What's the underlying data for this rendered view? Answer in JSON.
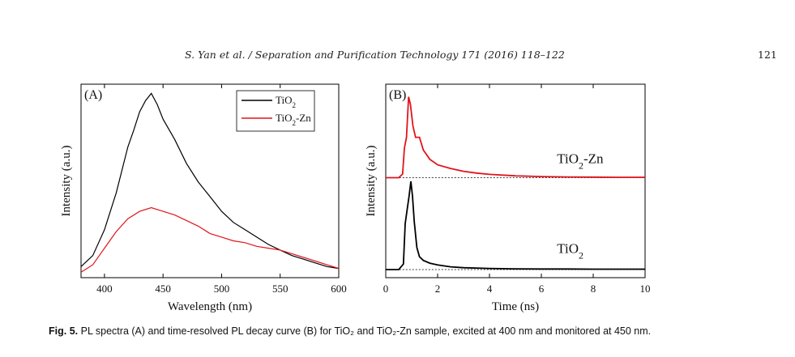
{
  "header": {
    "journal": "S. Yan et al. / Separation and Purification Technology 171 (2016) 118–122",
    "page_number": "121"
  },
  "caption": {
    "label": "Fig. 5.",
    "text": "PL spectra (A) and time-resolved PL decay curve (B) for TiO₂ and TiO₂-Zn sample, excited at 400 nm and monitored at 450 nm."
  },
  "colors": {
    "tio2": "#000000",
    "tio2_zn": "#e0141b"
  },
  "chart_data": [
    {
      "type": "line",
      "panel_label": "(A)",
      "xlabel": "Wavelength (nm)",
      "ylabel": "Intensity (a.u.)",
      "xlim": [
        380,
        600
      ],
      "ylim": [
        0,
        1.05
      ],
      "x_ticks": [
        400,
        450,
        500,
        550,
        600
      ],
      "legend_position": "top-right",
      "legend": [
        {
          "name": "TiO",
          "sub": "2",
          "suffix": "",
          "color": "#000000"
        },
        {
          "name": "TiO",
          "sub": "2",
          "suffix": "-Zn",
          "color": "#e0141b"
        }
      ],
      "series": [
        {
          "name": "TiO2",
          "color": "#000000",
          "x": [
            380,
            390,
            400,
            410,
            420,
            425,
            430,
            435,
            440,
            445,
            450,
            460,
            470,
            480,
            490,
            500,
            510,
            520,
            530,
            540,
            550,
            560,
            570,
            580,
            590,
            600
          ],
          "values": [
            0.06,
            0.12,
            0.26,
            0.46,
            0.71,
            0.8,
            0.9,
            0.96,
            1.0,
            0.94,
            0.86,
            0.75,
            0.62,
            0.52,
            0.44,
            0.36,
            0.3,
            0.26,
            0.22,
            0.18,
            0.15,
            0.12,
            0.1,
            0.08,
            0.06,
            0.05
          ]
        },
        {
          "name": "TiO2-Zn",
          "color": "#e0141b",
          "x": [
            380,
            390,
            400,
            410,
            420,
            430,
            440,
            450,
            460,
            470,
            480,
            490,
            500,
            510,
            520,
            530,
            540,
            550,
            560,
            570,
            580,
            590,
            600
          ],
          "values": [
            0.03,
            0.07,
            0.16,
            0.25,
            0.32,
            0.36,
            0.38,
            0.36,
            0.34,
            0.31,
            0.28,
            0.24,
            0.22,
            0.2,
            0.19,
            0.17,
            0.16,
            0.15,
            0.13,
            0.11,
            0.09,
            0.07,
            0.05
          ]
        }
      ]
    },
    {
      "type": "line",
      "panel_label": "(B)",
      "xlabel": "Time (ns)",
      "ylabel": "Intensity (a.u.)",
      "xlim": [
        0,
        10
      ],
      "ylim": [
        0,
        1
      ],
      "x_ticks": [
        0,
        2,
        4,
        6,
        8,
        10
      ],
      "annotations": [
        {
          "name": "TiO",
          "sub": "2",
          "suffix": "-Zn"
        },
        {
          "name": "TiO",
          "sub": "2",
          "suffix": ""
        }
      ],
      "series": [
        {
          "name": "TiO2-Zn",
          "color": "#e0141b",
          "offset": 0.5,
          "x": [
            0,
            0.5,
            0.65,
            0.72,
            0.8,
            0.88,
            0.95,
            1.05,
            1.15,
            1.3,
            1.45,
            1.7,
            2.0,
            2.5,
            3.0,
            3.5,
            4.0,
            5.0,
            6.0,
            7.0,
            8.0,
            9.0,
            10.0
          ],
          "values": [
            0.0,
            0.0,
            0.02,
            0.16,
            0.22,
            0.44,
            0.4,
            0.28,
            0.22,
            0.22,
            0.15,
            0.1,
            0.07,
            0.05,
            0.035,
            0.025,
            0.018,
            0.01,
            0.006,
            0.004,
            0.003,
            0.002,
            0.002
          ]
        },
        {
          "name": "TiO2",
          "color": "#000000",
          "offset": 0.0,
          "x": [
            0,
            0.5,
            0.68,
            0.75,
            0.82,
            0.9,
            0.97,
            1.03,
            1.1,
            1.2,
            1.3,
            1.45,
            1.7,
            2.0,
            2.5,
            3.0,
            4.0,
            5.0,
            6.0,
            7.0,
            8.0,
            9.0,
            10.0
          ],
          "values": [
            0.0,
            0.0,
            0.03,
            0.25,
            0.32,
            0.4,
            0.48,
            0.4,
            0.26,
            0.12,
            0.07,
            0.05,
            0.035,
            0.025,
            0.015,
            0.01,
            0.006,
            0.004,
            0.003,
            0.003,
            0.002,
            0.002,
            0.002
          ]
        }
      ]
    }
  ]
}
